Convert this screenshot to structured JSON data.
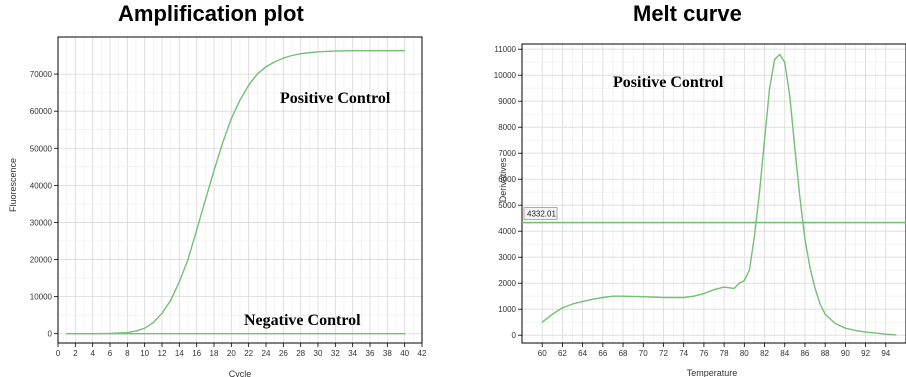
{
  "chart_data": [
    {
      "type": "line",
      "title": "Amplification plot",
      "xlabel": "Cycle",
      "ylabel": "Fluorescence",
      "xlim": [
        0,
        42
      ],
      "ylim": [
        -2500,
        80000
      ],
      "x_ticks": [
        "0",
        "2",
        "4",
        "6",
        "8",
        "10",
        "12",
        "14",
        "16",
        "18",
        "20",
        "22",
        "24",
        "26",
        "28",
        "30",
        "32",
        "34",
        "36",
        "38",
        "40",
        "42"
      ],
      "y_ticks": [
        "0",
        "10000",
        "20000",
        "30000",
        "40000",
        "50000",
        "60000",
        "70000"
      ],
      "grid": true,
      "annotations": [
        "Positive Control",
        "Negative Control"
      ],
      "series": [
        {
          "name": "Positive Control",
          "x": [
            1,
            4,
            6,
            8,
            9,
            10,
            11,
            12,
            13,
            14,
            15,
            16,
            17,
            18,
            19,
            20,
            21,
            22,
            23,
            24,
            25,
            26,
            27,
            28,
            30,
            32,
            34,
            36,
            38,
            40
          ],
          "y": [
            0,
            0,
            100,
            300,
            700,
            1500,
            3000,
            5500,
            9000,
            14000,
            20000,
            28000,
            36000,
            44000,
            51500,
            58000,
            63000,
            67000,
            70000,
            72000,
            73300,
            74300,
            75000,
            75500,
            76000,
            76200,
            76300,
            76300,
            76300,
            76300
          ]
        },
        {
          "name": "Negative Control",
          "x": [
            1,
            40
          ],
          "y": [
            0,
            0
          ]
        }
      ]
    },
    {
      "type": "line",
      "title": "Melt curve",
      "xlabel": "Temperature",
      "ylabel": "Derivatives",
      "xlim": [
        58,
        96
      ],
      "ylim": [
        -300,
        11200
      ],
      "x_ticks": [
        "60",
        "62",
        "64",
        "66",
        "68",
        "70",
        "72",
        "74",
        "76",
        "78",
        "80",
        "82",
        "84",
        "86",
        "88",
        "90",
        "92",
        "94"
      ],
      "y_ticks": [
        "0",
        "1000",
        "2000",
        "3000",
        "4000",
        "5000",
        "6000",
        "7000",
        "8000",
        "9000",
        "10000",
        "11000"
      ],
      "grid": true,
      "threshold": {
        "label": "4332.01",
        "value": 4332.01
      },
      "annotations": [
        "Positive Control"
      ],
      "series": [
        {
          "name": "Positive Control",
          "x": [
            60,
            61,
            62,
            63,
            64,
            65,
            66,
            67,
            68,
            70,
            72,
            74,
            75,
            76,
            77,
            78,
            79,
            79.5,
            80,
            80.5,
            81,
            81.5,
            82,
            82.5,
            83,
            83.5,
            84,
            84.5,
            85,
            85.5,
            86,
            86.5,
            87,
            87.5,
            88,
            89,
            90,
            91,
            92,
            93,
            94,
            95
          ],
          "y": [
            500,
            800,
            1050,
            1200,
            1300,
            1380,
            1450,
            1500,
            1500,
            1480,
            1450,
            1450,
            1500,
            1600,
            1750,
            1850,
            1800,
            2000,
            2100,
            2500,
            3800,
            5500,
            7500,
            9500,
            10600,
            10800,
            10500,
            9200,
            7200,
            5300,
            3700,
            2600,
            1800,
            1200,
            800,
            450,
            270,
            180,
            120,
            80,
            40,
            10
          ]
        }
      ]
    }
  ]
}
